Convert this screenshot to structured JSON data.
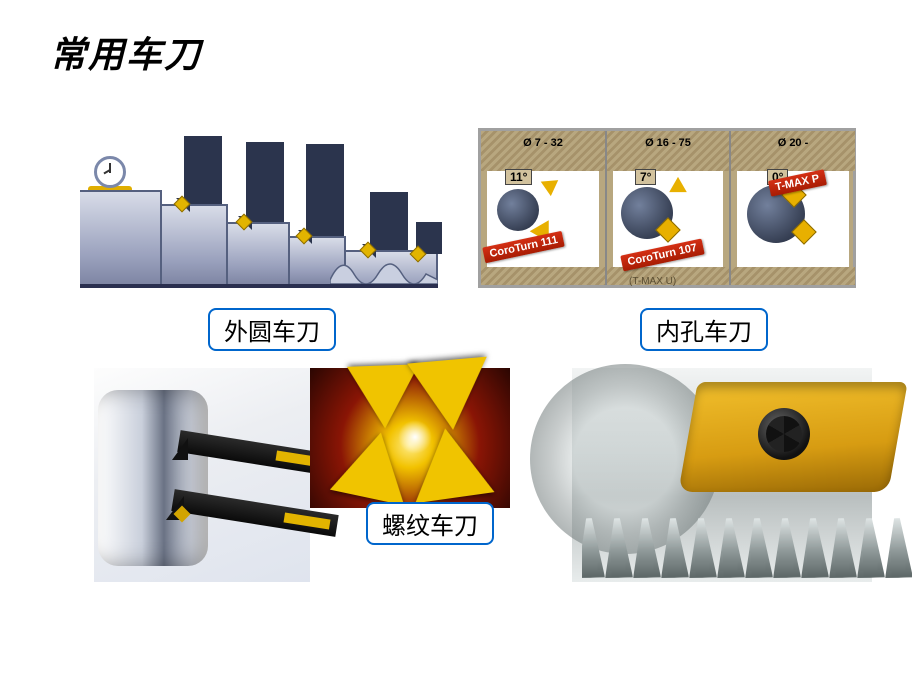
{
  "title": "常用车刀",
  "labels": {
    "external": "外圆车刀",
    "internal": "内孔车刀",
    "thread": "螺纹车刀"
  },
  "colors": {
    "label_border": "#0066cc",
    "insert_gold": "#e2b400",
    "holder_navy": "#2b344d",
    "steel_light": "#d8dce8",
    "steel_dark": "#7f86a4",
    "bore_bg": "#b8a77f",
    "red_label": "#d43015"
  },
  "internal_diagram": {
    "sections": [
      {
        "range": "Ø 7 - 32",
        "angle": "11°",
        "product": "CoroTurn 111"
      },
      {
        "range": "Ø 16 - 75",
        "angle": "7°",
        "product": "CoroTurn 107"
      },
      {
        "range": "Ø 20 -",
        "angle": "0°",
        "product": "T-MAX P"
      }
    ],
    "footer": "(T-MAX U)"
  },
  "external_diagram": {
    "tool_count": 5,
    "has_stopwatch": true
  },
  "photos": {
    "a_desc": "external-turning-holders-on-cylinder",
    "b_desc": "gold-threading-inserts-closeup",
    "c_desc": "threading-tool-over-gear",
    "c_gear_teeth": 12
  }
}
